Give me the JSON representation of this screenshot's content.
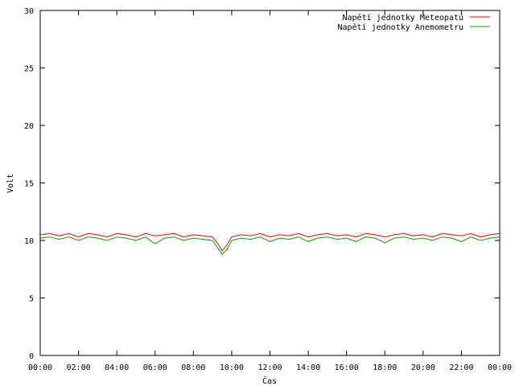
{
  "chart_data": {
    "type": "line",
    "title": "",
    "xlabel": "Čas",
    "ylabel": "Volt",
    "ylim": [
      0,
      30
    ],
    "yticks": [
      0,
      5,
      10,
      15,
      20,
      25,
      30
    ],
    "xlim": [
      0,
      24
    ],
    "xticks": [
      {
        "value": 0,
        "label": "00:00"
      },
      {
        "value": 2,
        "label": "02:00"
      },
      {
        "value": 4,
        "label": "04:00"
      },
      {
        "value": 6,
        "label": "06:00"
      },
      {
        "value": 8,
        "label": "08:00"
      },
      {
        "value": 10,
        "label": "10:00"
      },
      {
        "value": 12,
        "label": "12:00"
      },
      {
        "value": 14,
        "label": "14:00"
      },
      {
        "value": 16,
        "label": "16:00"
      },
      {
        "value": 18,
        "label": "18:00"
      },
      {
        "value": 20,
        "label": "20:00"
      },
      {
        "value": 22,
        "label": "22:00"
      },
      {
        "value": 24,
        "label": "00:00"
      }
    ],
    "grid": false,
    "legend": "top-right",
    "x": [
      0,
      0.5,
      1,
      1.5,
      2,
      2.5,
      3,
      3.5,
      4,
      4.5,
      5,
      5.5,
      6,
      6.5,
      7,
      7.5,
      8,
      8.5,
      9,
      9.25,
      9.5,
      9.75,
      10,
      10.5,
      11,
      11.5,
      12,
      12.5,
      13,
      13.5,
      14,
      14.5,
      15,
      15.5,
      16,
      16.5,
      17,
      17.5,
      18,
      18.5,
      19,
      19.5,
      20,
      20.5,
      21,
      21.5,
      22,
      22.5,
      23,
      23.5,
      24
    ],
    "series": [
      {
        "name": "Napětí jednotky Meteopatu",
        "color": "#ff0000",
        "values": [
          10.5,
          10.6,
          10.4,
          10.6,
          10.3,
          10.6,
          10.5,
          10.3,
          10.6,
          10.5,
          10.3,
          10.6,
          10.4,
          10.5,
          10.6,
          10.3,
          10.5,
          10.4,
          10.3,
          9.8,
          9.1,
          9.6,
          10.3,
          10.5,
          10.4,
          10.6,
          10.3,
          10.5,
          10.4,
          10.6,
          10.3,
          10.5,
          10.6,
          10.4,
          10.5,
          10.3,
          10.6,
          10.5,
          10.3,
          10.5,
          10.6,
          10.4,
          10.5,
          10.3,
          10.6,
          10.5,
          10.4,
          10.6,
          10.3,
          10.5,
          10.6
        ]
      },
      {
        "name": "Napětí jednotky Anemometru",
        "color": "#00a000",
        "values": [
          10.2,
          10.3,
          10.1,
          10.3,
          10.0,
          10.3,
          10.2,
          10.0,
          10.3,
          10.2,
          10.0,
          10.3,
          9.7,
          10.2,
          10.3,
          10.0,
          10.2,
          10.1,
          10.0,
          9.4,
          8.8,
          9.2,
          10.0,
          10.2,
          10.1,
          10.3,
          9.9,
          10.2,
          10.1,
          10.3,
          9.9,
          10.2,
          10.3,
          10.1,
          10.2,
          9.9,
          10.3,
          10.2,
          9.8,
          10.2,
          10.3,
          10.1,
          10.2,
          10.0,
          10.3,
          10.2,
          9.9,
          10.3,
          10.0,
          10.2,
          10.3
        ]
      }
    ]
  }
}
